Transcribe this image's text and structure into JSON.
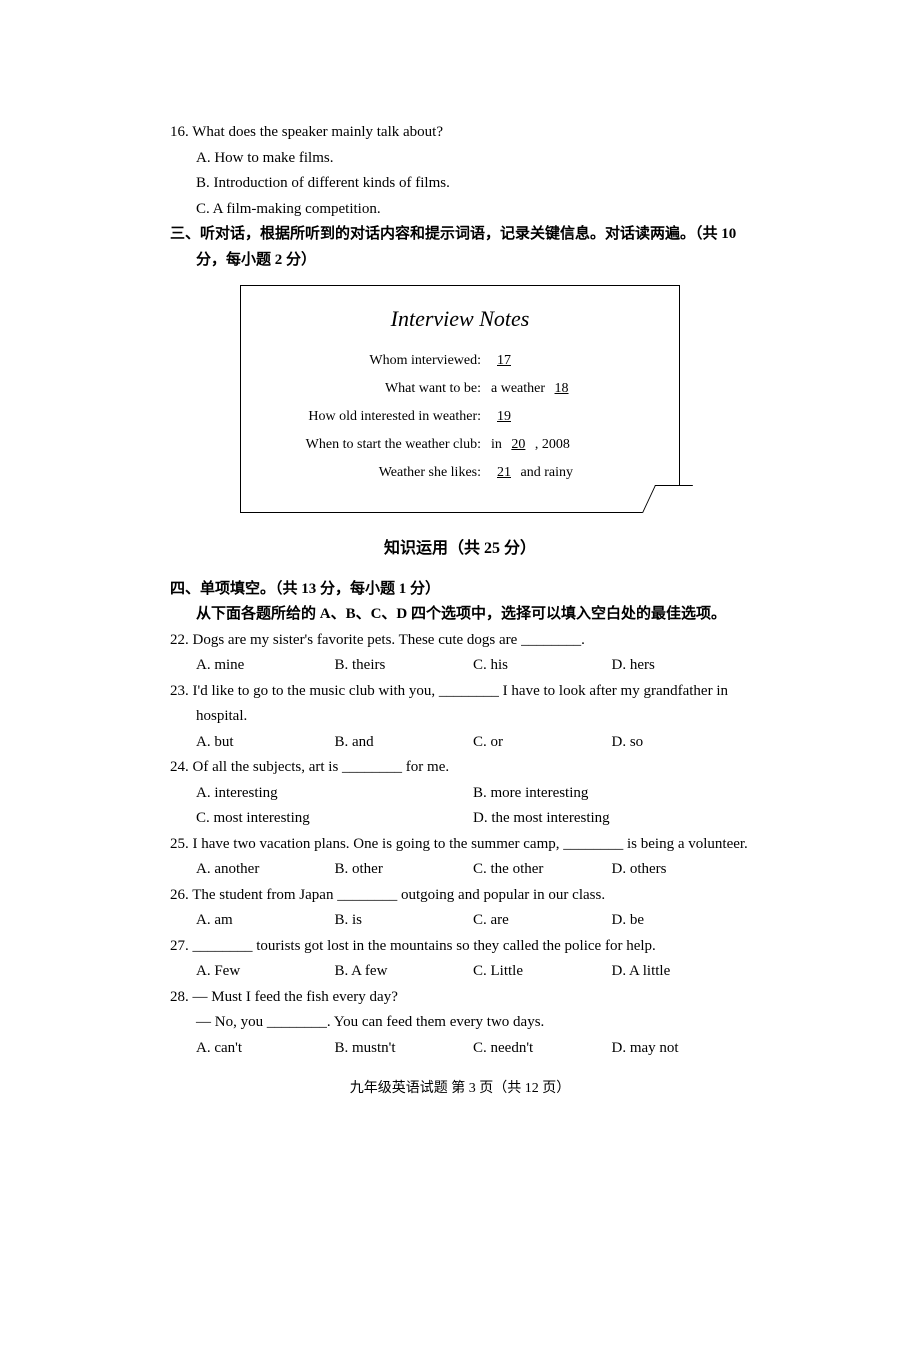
{
  "q16": {
    "num": "16.",
    "stem": "What does the speaker mainly talk about?",
    "A": "A.  How to make films.",
    "B": "B.  Introduction of different kinds of films.",
    "C": "C.  A film-making competition."
  },
  "section3": {
    "heading": "三、听对话，根据所听到的对话内容和提示词语，记录关键信息。对话读两遍。（共 10 分，每小题 2 分）"
  },
  "notes": {
    "title": "Interview Notes",
    "r1_label": "Whom interviewed:",
    "r1_val_blank": "17",
    "r2_label": "What want to be:",
    "r2_prefix": "a weather",
    "r2_blank": "18",
    "r3_label": "How old interested in weather:",
    "r3_blank": "19",
    "r4_label": "When to start the weather club:",
    "r4_prefix": "in",
    "r4_blank": "20",
    "r4_suffix": ", 2008",
    "r5_label": "Weather she likes:",
    "r5_blank": "21",
    "r5_suffix": "and rainy"
  },
  "center_title": "知识运用（共 25 分）",
  "section4": {
    "heading": "四、单项填空。（共 13 分，每小题 1 分）",
    "instructions": "从下面各题所给的 A、B、C、D 四个选项中，选择可以填入空白处的最佳选项。"
  },
  "q22": {
    "num": "22.",
    "stem": "Dogs are my sister's favorite pets.  These cute dogs are ________.",
    "A": "A.  mine",
    "B": "B.  theirs",
    "C": "C.  his",
    "D": "D.  hers"
  },
  "q23": {
    "num": "23.",
    "stem": "I'd like to go to the music club with you, ________ I have to look after my grandfather in hospital.",
    "A": "A.  but",
    "B": "B.  and",
    "C": "C.  or",
    "D": "D.  so"
  },
  "q24": {
    "num": "24.",
    "stem": "Of all the subjects, art is ________ for me.",
    "A": "A.  interesting",
    "B": "B.  more interesting",
    "C": "C.  most interesting",
    "D": "D.  the most interesting"
  },
  "q25": {
    "num": "25.",
    "stem": "I have two vacation plans.  One is going to the summer camp, ________ is being a volunteer.",
    "A": "A.  another",
    "B": "B.  other",
    "C": "C.  the other",
    "D": "D.  others"
  },
  "q26": {
    "num": "26.",
    "stem": "The student from Japan ________ outgoing and popular in our class.",
    "A": "A.  am",
    "B": "B.  is",
    "C": "C.  are",
    "D": "D.  be"
  },
  "q27": {
    "num": "27.",
    "stem": "________ tourists got lost in the mountains so they called the police for help.",
    "A": "A.  Few",
    "B": "B.  A few",
    "C": "C.  Little",
    "D": "D.  A little"
  },
  "q28": {
    "num": "28.",
    "line1": "— Must I feed the fish every day?",
    "line2": "— No, you ________.  You can feed them every two days.",
    "A": "A.  can't",
    "B": "B.  mustn't",
    "C": "C.  needn't",
    "D": "D.  may not"
  },
  "footer": "九年级英语试题  第 3 页（共 12 页）"
}
